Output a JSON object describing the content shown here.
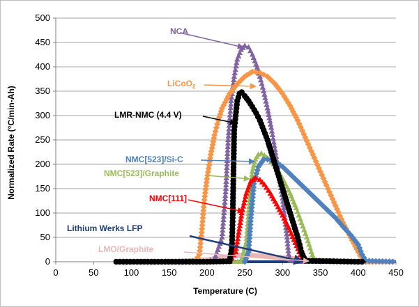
{
  "chart_data": {
    "type": "scatter",
    "title": "",
    "xlabel": "Temperature (C)",
    "ylabel": "Normalized Rate (°C/min-Ah)",
    "xlim": [
      0,
      450
    ],
    "ylim": [
      0,
      500
    ],
    "x_ticks": [
      "0",
      "50",
      "100",
      "150",
      "200",
      "250",
      "300",
      "350",
      "400",
      "450"
    ],
    "y_ticks": [
      "0",
      "50",
      "100",
      "150",
      "200",
      "250",
      "300",
      "350",
      "400",
      "450",
      "500"
    ],
    "grid": "horizontal",
    "legend": "none",
    "series": [
      {
        "name": "NCA",
        "color": "#8064a2",
        "marker": "triangle",
        "points": [
          [
            80,
            0
          ],
          [
            150,
            0
          ],
          [
            200,
            0
          ],
          [
            210,
            5
          ],
          [
            220,
            50
          ],
          [
            225,
            150
          ],
          [
            228,
            250
          ],
          [
            232,
            330
          ],
          [
            236,
            380
          ],
          [
            240,
            415
          ],
          [
            245,
            435
          ],
          [
            250,
            443
          ],
          [
            255,
            440
          ],
          [
            260,
            425
          ],
          [
            265,
            405
          ],
          [
            270,
            380
          ],
          [
            275,
            350
          ],
          [
            280,
            315
          ],
          [
            285,
            275
          ],
          [
            290,
            230
          ],
          [
            295,
            180
          ],
          [
            300,
            130
          ],
          [
            303,
            90
          ],
          [
            306,
            50
          ],
          [
            308,
            15
          ],
          [
            310,
            2
          ],
          [
            320,
            0
          ],
          [
            380,
            0
          ]
        ]
      },
      {
        "name": "LiCoO2",
        "color": "#f79646",
        "marker": "diamond",
        "points": [
          [
            80,
            0
          ],
          [
            150,
            0
          ],
          [
            185,
            2
          ],
          [
            190,
            15
          ],
          [
            193,
            60
          ],
          [
            196,
            120
          ],
          [
            200,
            170
          ],
          [
            205,
            220
          ],
          [
            210,
            260
          ],
          [
            215,
            290
          ],
          [
            220,
            315
          ],
          [
            230,
            345
          ],
          [
            240,
            365
          ],
          [
            250,
            380
          ],
          [
            260,
            390
          ],
          [
            270,
            388
          ],
          [
            280,
            380
          ],
          [
            290,
            365
          ],
          [
            300,
            345
          ],
          [
            310,
            320
          ],
          [
            320,
            290
          ],
          [
            330,
            255
          ],
          [
            340,
            220
          ],
          [
            350,
            185
          ],
          [
            360,
            150
          ],
          [
            370,
            115
          ],
          [
            380,
            80
          ],
          [
            390,
            50
          ],
          [
            400,
            20
          ],
          [
            405,
            5
          ],
          [
            410,
            0
          ],
          [
            450,
            0
          ]
        ]
      },
      {
        "name": "LMR-NMC (4.4 V)",
        "color": "#000000",
        "marker": "circle",
        "points": [
          [
            80,
            0
          ],
          [
            200,
            0
          ],
          [
            230,
            1
          ],
          [
            233,
            30
          ],
          [
            234,
            90
          ],
          [
            235,
            180
          ],
          [
            236,
            270
          ],
          [
            238,
            300
          ],
          [
            240,
            330
          ],
          [
            243,
            345
          ],
          [
            246,
            348
          ],
          [
            250,
            340
          ],
          [
            255,
            330
          ],
          [
            260,
            318
          ],
          [
            265,
            305
          ],
          [
            270,
            290
          ],
          [
            275,
            270
          ],
          [
            280,
            250
          ],
          [
            285,
            225
          ],
          [
            290,
            200
          ],
          [
            295,
            175
          ],
          [
            300,
            150
          ],
          [
            305,
            125
          ],
          [
            310,
            100
          ],
          [
            315,
            75
          ],
          [
            320,
            50
          ],
          [
            325,
            20
          ],
          [
            330,
            2
          ],
          [
            400,
            0
          ],
          [
            410,
            0
          ]
        ]
      },
      {
        "name": "NMC[523]/Si-C",
        "color": "#4f81bd",
        "marker": "diamond",
        "points": [
          [
            250,
            0
          ],
          [
            255,
            20
          ],
          [
            258,
            90
          ],
          [
            262,
            160
          ],
          [
            268,
            195
          ],
          [
            275,
            210
          ],
          [
            280,
            210
          ],
          [
            290,
            205
          ],
          [
            300,
            195
          ],
          [
            310,
            180
          ],
          [
            320,
            165
          ],
          [
            330,
            150
          ],
          [
            340,
            135
          ],
          [
            350,
            120
          ],
          [
            360,
            105
          ],
          [
            370,
            90
          ],
          [
            380,
            72
          ],
          [
            390,
            55
          ],
          [
            400,
            35
          ],
          [
            405,
            15
          ],
          [
            410,
            2
          ],
          [
            450,
            0
          ]
        ]
      },
      {
        "name": "NMC[523]/Graphite",
        "color": "#9bbb59",
        "marker": "triangle",
        "points": [
          [
            80,
            0
          ],
          [
            125,
            0
          ],
          [
            245,
            0
          ],
          [
            252,
            40
          ],
          [
            256,
            120
          ],
          [
            260,
            185
          ],
          [
            264,
            210
          ],
          [
            268,
            220
          ],
          [
            272,
            222
          ],
          [
            276,
            218
          ],
          [
            282,
            210
          ],
          [
            288,
            200
          ],
          [
            295,
            185
          ],
          [
            302,
            165
          ],
          [
            310,
            140
          ],
          [
            318,
            110
          ],
          [
            325,
            80
          ],
          [
            332,
            50
          ],
          [
            338,
            20
          ],
          [
            342,
            2
          ],
          [
            380,
            0
          ]
        ]
      },
      {
        "name": "NMC[111]",
        "color": "#ff0000",
        "marker": "triangle",
        "points": [
          [
            230,
            0
          ],
          [
            238,
            20
          ],
          [
            242,
            60
          ],
          [
            246,
            100
          ],
          [
            252,
            140
          ],
          [
            258,
            165
          ],
          [
            264,
            172
          ],
          [
            270,
            168
          ],
          [
            276,
            158
          ],
          [
            284,
            140
          ],
          [
            292,
            118
          ],
          [
            300,
            95
          ],
          [
            308,
            70
          ],
          [
            315,
            45
          ],
          [
            322,
            20
          ],
          [
            327,
            3
          ],
          [
            340,
            0
          ]
        ]
      },
      {
        "name": "Lithium Werks LFP",
        "color": "#1f3d7a",
        "marker": "none",
        "points": [
          [
            80,
            0
          ],
          [
            450,
            0
          ]
        ]
      },
      {
        "name": "LMO/Graphite",
        "color": "#e6b8b7",
        "marker": "square",
        "points": [
          [
            80,
            0
          ],
          [
            150,
            0
          ],
          [
            200,
            4
          ],
          [
            225,
            10
          ],
          [
            250,
            14
          ],
          [
            270,
            12
          ],
          [
            300,
            8
          ],
          [
            330,
            4
          ],
          [
            360,
            2
          ],
          [
            400,
            0
          ],
          [
            450,
            0
          ]
        ]
      }
    ],
    "annotations": [
      {
        "text": "NCA",
        "series": 0,
        "color": "#8064a2"
      },
      {
        "text": "LiCoO",
        "sub": "2",
        "series": 1,
        "color": "#f79646"
      },
      {
        "text": "LMR-NMC (4.4 V)",
        "series": 2,
        "color": "#000000"
      },
      {
        "text": "NMC[523]/Si-C",
        "series": 3,
        "color": "#4f81bd"
      },
      {
        "text": "NMC[523]/Graphite",
        "series": 4,
        "color": "#9bbb59"
      },
      {
        "text": "NMC[111]",
        "series": 5,
        "color": "#ff0000"
      },
      {
        "text": "Lithium Werks LFP",
        "series": 6,
        "color": "#1f3d7a"
      },
      {
        "text": "LMO/Graphite",
        "series": 7,
        "color": "#e6b8b7"
      }
    ]
  }
}
